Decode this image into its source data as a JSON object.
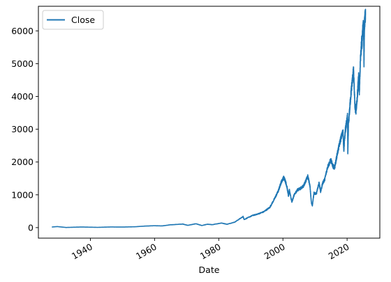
{
  "chart_data": {
    "type": "line",
    "title": "",
    "xlabel": "Date",
    "ylabel": "",
    "xlim": [
      1923.8,
      2030.2
    ],
    "ylim": [
      -321,
      6750
    ],
    "x_ticks": [
      1940,
      1960,
      1980,
      2000,
      2020
    ],
    "x_tick_labels": [
      "1940",
      "1960",
      "1980",
      "2000",
      "2020"
    ],
    "y_ticks": [
      0,
      1000,
      2000,
      3000,
      4000,
      5000,
      6000
    ],
    "y_tick_labels": [
      "0",
      "1000",
      "2000",
      "3000",
      "4000",
      "5000",
      "6000"
    ],
    "grid": false,
    "legend": {
      "position": "upper-left",
      "entries": [
        "Close"
      ]
    },
    "series": [
      {
        "name": "Close",
        "color": "#1f77b4",
        "x": [
          "1927-12-30",
          "1929-09-01",
          "1932-06-01",
          "1937-03-01",
          "1942-04-01",
          "1946-05-01",
          "1950-01-01",
          "1954-01-01",
          "1957-01-01",
          "1960-01-01",
          "1962-06-01",
          "1965-01-01",
          "1968-11-01",
          "1970-05-01",
          "1972-12-01",
          "1974-10-01",
          "1976-06-01",
          "1978-01-01",
          "1980-11-01",
          "1982-08-01",
          "1985-01-01",
          "1987-08-01",
          "1987-12-01",
          "1990-07-01",
          "1992-01-01",
          "1994-01-01",
          "1995-12-01",
          "1997-06-01",
          "1998-08-01",
          "1999-06-01",
          "2000-03-24",
          "2000-09-01",
          "2001-04-01",
          "2001-09-21",
          "2002-01-01",
          "2002-10-09",
          "2003-06-01",
          "2004-06-01",
          "2005-06-01",
          "2006-06-01",
          "2007-10-09",
          "2008-06-01",
          "2008-11-20",
          "2009-03-09",
          "2009-09-01",
          "2010-06-01",
          "2011-04-01",
          "2011-10-03",
          "2012-06-01",
          "2013-01-01",
          "2013-12-01",
          "2014-12-01",
          "2015-08-25",
          "2016-02-11",
          "2016-12-01",
          "2017-12-01",
          "2018-09-20",
          "2018-12-24",
          "2019-06-01",
          "2020-02-19",
          "2020-03-23",
          "2020-06-01",
          "2020-12-01",
          "2021-06-01",
          "2022-01-03",
          "2022-06-16",
          "2022-10-12",
          "2023-03-01",
          "2023-07-31",
          "2023-10-27",
          "2024-03-01",
          "2024-07-16",
          "2024-09-01",
          "2024-12-06",
          "2025-02-19",
          "2025-04-08",
          "2025-06-01",
          "2025-08-01",
          "2025-10-01"
        ],
        "y": [
          17.7,
          31.9,
          4.4,
          18.1,
          7.8,
          19.3,
          16.8,
          26.3,
          46.2,
          58.0,
          52.3,
          86.0,
          108.4,
          69.3,
          118.1,
          62.3,
          103.0,
          89.3,
          140.5,
          102.4,
          168.0,
          336.8,
          247.1,
          368.9,
          408.8,
          481.6,
          615.9,
          885.1,
          1120.7,
          1372.7,
          1527.5,
          1450.0,
          1250.0,
          965.8,
          1148.1,
          776.8,
          975.0,
          1140.8,
          1191.3,
          1270.2,
          1565.2,
          1280.0,
          752.4,
          676.5,
          1057.1,
          1030.7,
          1363.6,
          1099.2,
          1362.2,
          1462.4,
          1848.4,
          2058.9,
          1867.6,
          1829.1,
          2238.8,
          2673.6,
          2930.8,
          2351.1,
          2941.8,
          3386.2,
          2237.4,
          3100.3,
          3756.1,
          4297.5,
          4796.6,
          3666.8,
          3577.0,
          3970.2,
          4588.9,
          4117.4,
          5137.1,
          5667.2,
          5648.4,
          6090.3,
          6144.2,
          4982.8,
          6205.0,
          6389.8,
          6481.0
        ]
      }
    ]
  }
}
